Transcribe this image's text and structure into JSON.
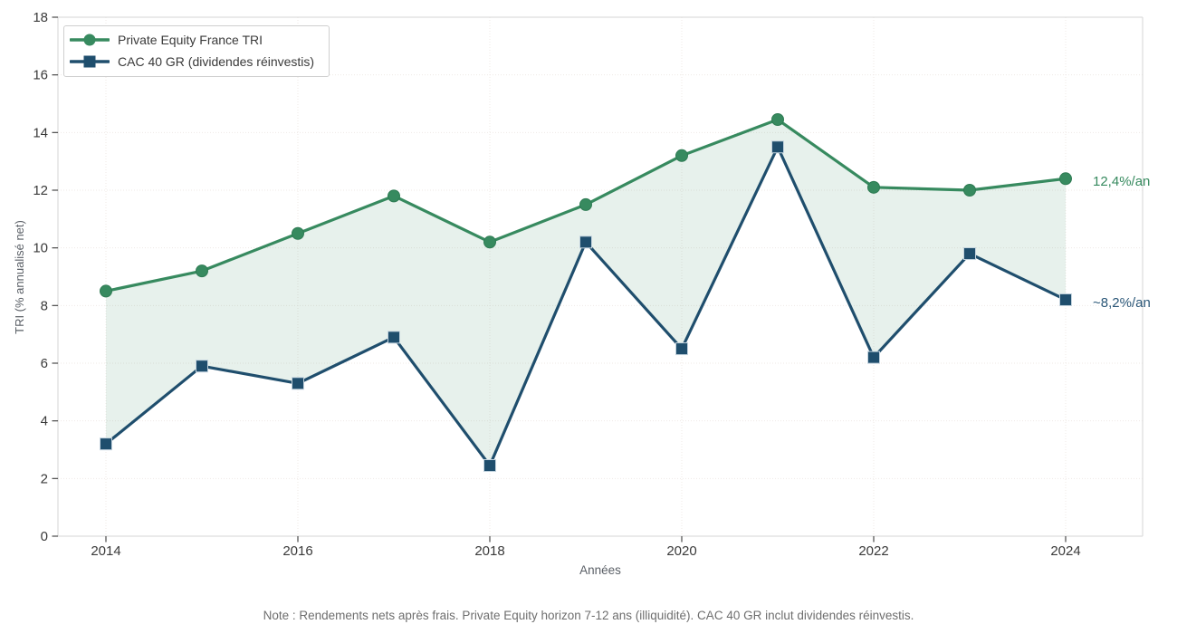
{
  "chart_data": {
    "type": "line",
    "title": "",
    "xlabel": "Années",
    "ylabel": "TRI (% annualisé net)",
    "x": [
      2014,
      2015,
      2016,
      2017,
      2018,
      2019,
      2020,
      2021,
      2022,
      2023,
      2024
    ],
    "series": [
      {
        "name": "Private Equity France TRI",
        "marker": "circle",
        "color": "#378a5f",
        "marker_edge": "#2e7b53",
        "values": [
          8.5,
          9.2,
          10.5,
          11.8,
          10.2,
          11.5,
          13.2,
          14.45,
          12.1,
          12.0,
          12.4
        ]
      },
      {
        "name": "CAC 40 GR (dividendes réinvestis)",
        "marker": "square",
        "color": "#1f4e6d",
        "marker_edge": "#c3d3de",
        "values": [
          3.2,
          5.9,
          5.3,
          6.9,
          2.45,
          10.2,
          6.5,
          13.5,
          6.2,
          9.8,
          8.2
        ]
      }
    ],
    "fill_between": {
      "enabled": true,
      "color": "#378a5f",
      "opacity": 0.12
    },
    "ylim": [
      0,
      18
    ],
    "yticks": [
      0,
      2,
      4,
      6,
      8,
      10,
      12,
      14,
      16,
      18
    ],
    "xticks": [
      2014,
      2016,
      2018,
      2020,
      2022,
      2024
    ],
    "grid": true,
    "legend_position": "top-left",
    "annotations": [
      {
        "text": "12,4%/an",
        "color": "#378a5f",
        "anchor_value": 12.4
      },
      {
        "text": "~8,2%/an",
        "color": "#2b5778",
        "anchor_value": 8.2
      }
    ]
  },
  "styles": {
    "spine_color": "#d6d6d6",
    "grid_color": "#efe9e6",
    "tick_color": "#4a4a4a",
    "tick_label_color": "#3a3a3a"
  },
  "note": {
    "text": "Note : Rendements nets après frais. Private Equity horizon 7-12 ans (illiquidité). CAC 40 GR inclut dividendes réinvestis."
  }
}
